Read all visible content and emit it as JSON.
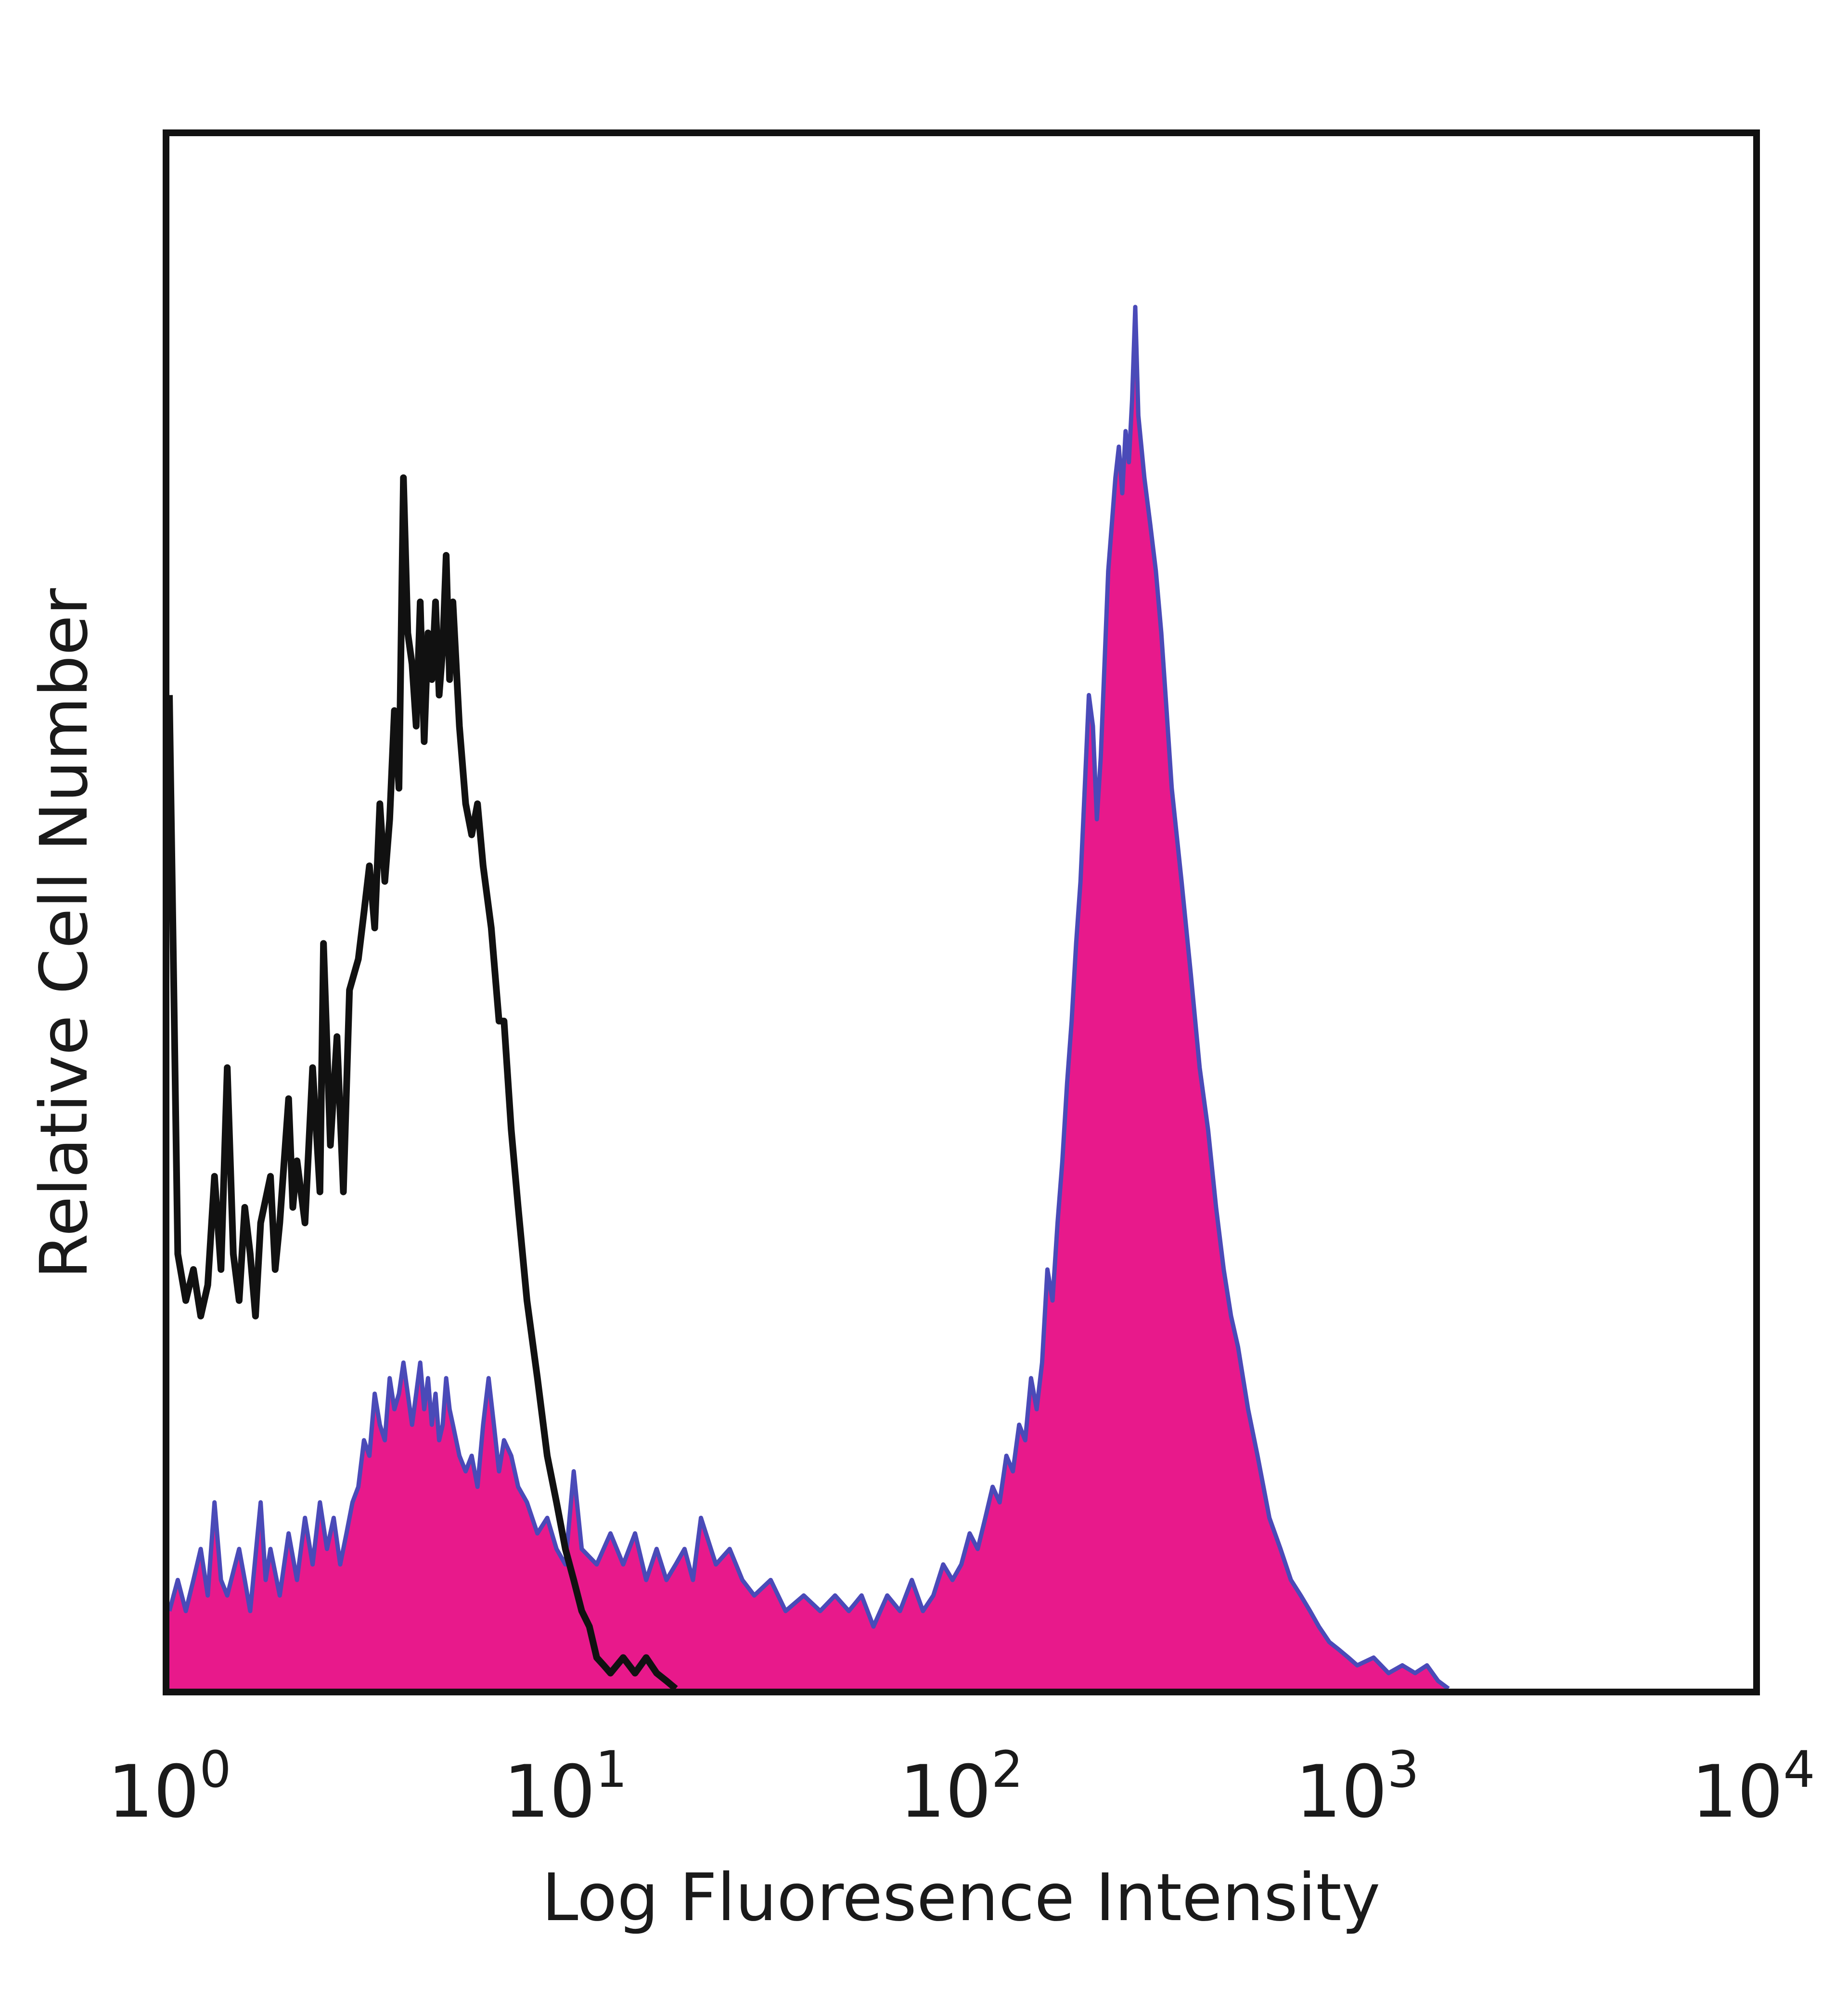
{
  "chart_data": {
    "type": "area",
    "title": "",
    "xlabel": "Log Fluoresence Intensity",
    "ylabel": "Relative Cell Number",
    "xscale": "log",
    "xlim": [
      1,
      10000
    ],
    "ylim": [
      0,
      100
    ],
    "grid": false,
    "legend": "none",
    "x_ticks": [
      {
        "base": "10",
        "exp": "0",
        "value": 1
      },
      {
        "base": "10",
        "exp": "1",
        "value": 10
      },
      {
        "base": "10",
        "exp": "2",
        "value": 100
      },
      {
        "base": "10",
        "exp": "3",
        "value": 1000
      },
      {
        "base": "10",
        "exp": "4",
        "value": 10000
      }
    ],
    "series": [
      {
        "style": "line",
        "color": "#111111",
        "points": [
          [
            1.0,
            64
          ],
          [
            1.05,
            28
          ],
          [
            1.1,
            25
          ],
          [
            1.15,
            27
          ],
          [
            1.2,
            24
          ],
          [
            1.25,
            26
          ],
          [
            1.3,
            33
          ],
          [
            1.35,
            27
          ],
          [
            1.4,
            40
          ],
          [
            1.45,
            28
          ],
          [
            1.5,
            25
          ],
          [
            1.55,
            31
          ],
          [
            1.6,
            28
          ],
          [
            1.65,
            24
          ],
          [
            1.7,
            30
          ],
          [
            1.8,
            33
          ],
          [
            1.85,
            27
          ],
          [
            1.9,
            30
          ],
          [
            2.0,
            38
          ],
          [
            2.05,
            31
          ],
          [
            2.1,
            34
          ],
          [
            2.2,
            30
          ],
          [
            2.3,
            40
          ],
          [
            2.4,
            32
          ],
          [
            2.45,
            48
          ],
          [
            2.55,
            35
          ],
          [
            2.65,
            42
          ],
          [
            2.75,
            32
          ],
          [
            2.85,
            45
          ],
          [
            3.0,
            47
          ],
          [
            3.1,
            50
          ],
          [
            3.2,
            53
          ],
          [
            3.3,
            49
          ],
          [
            3.4,
            57
          ],
          [
            3.5,
            52
          ],
          [
            3.6,
            56
          ],
          [
            3.7,
            63
          ],
          [
            3.8,
            58
          ],
          [
            3.9,
            78
          ],
          [
            4.0,
            68
          ],
          [
            4.1,
            66
          ],
          [
            4.2,
            62
          ],
          [
            4.3,
            70
          ],
          [
            4.4,
            61
          ],
          [
            4.5,
            68
          ],
          [
            4.6,
            65
          ],
          [
            4.7,
            70
          ],
          [
            4.8,
            64
          ],
          [
            4.9,
            67
          ],
          [
            5.0,
            73
          ],
          [
            5.1,
            65
          ],
          [
            5.2,
            70
          ],
          [
            5.4,
            62
          ],
          [
            5.6,
            57
          ],
          [
            5.8,
            55
          ],
          [
            6.0,
            57
          ],
          [
            6.2,
            53
          ],
          [
            6.5,
            49
          ],
          [
            6.8,
            43
          ],
          [
            7.0,
            43
          ],
          [
            7.3,
            36
          ],
          [
            7.6,
            31
          ],
          [
            8.0,
            25
          ],
          [
            8.5,
            20
          ],
          [
            9.0,
            15
          ],
          [
            9.5,
            12
          ],
          [
            10.0,
            9
          ],
          [
            10.5,
            7
          ],
          [
            11.0,
            5
          ],
          [
            11.5,
            4
          ],
          [
            12.0,
            2
          ],
          [
            12.5,
            1.5
          ],
          [
            13.0,
            1
          ],
          [
            14.0,
            2
          ],
          [
            15.0,
            1
          ],
          [
            16.0,
            2
          ],
          [
            17.0,
            1
          ],
          [
            18.0,
            0.5
          ],
          [
            19.0,
            0
          ]
        ]
      },
      {
        "style": "filled",
        "color": "#e8198b",
        "stroke": "#4a4ab8",
        "points": [
          [
            1.0,
            5
          ],
          [
            1.05,
            7
          ],
          [
            1.1,
            5
          ],
          [
            1.15,
            7
          ],
          [
            1.2,
            9
          ],
          [
            1.25,
            6
          ],
          [
            1.3,
            12
          ],
          [
            1.35,
            7
          ],
          [
            1.4,
            6
          ],
          [
            1.5,
            9
          ],
          [
            1.55,
            7
          ],
          [
            1.6,
            5
          ],
          [
            1.7,
            12
          ],
          [
            1.75,
            7
          ],
          [
            1.8,
            9
          ],
          [
            1.9,
            6
          ],
          [
            2.0,
            10
          ],
          [
            2.1,
            7
          ],
          [
            2.2,
            11
          ],
          [
            2.3,
            8
          ],
          [
            2.4,
            12
          ],
          [
            2.5,
            9
          ],
          [
            2.6,
            11
          ],
          [
            2.7,
            8
          ],
          [
            2.8,
            10
          ],
          [
            2.9,
            12
          ],
          [
            3.0,
            13
          ],
          [
            3.1,
            16
          ],
          [
            3.2,
            15
          ],
          [
            3.3,
            19
          ],
          [
            3.4,
            17
          ],
          [
            3.5,
            16
          ],
          [
            3.6,
            20
          ],
          [
            3.7,
            18
          ],
          [
            3.8,
            19
          ],
          [
            3.9,
            21
          ],
          [
            4.0,
            19
          ],
          [
            4.1,
            17
          ],
          [
            4.2,
            19
          ],
          [
            4.3,
            21
          ],
          [
            4.4,
            18
          ],
          [
            4.5,
            20
          ],
          [
            4.6,
            17
          ],
          [
            4.7,
            19
          ],
          [
            4.8,
            16
          ],
          [
            4.9,
            17
          ],
          [
            5.0,
            20
          ],
          [
            5.1,
            18
          ],
          [
            5.2,
            17
          ],
          [
            5.4,
            15
          ],
          [
            5.6,
            14
          ],
          [
            5.8,
            15
          ],
          [
            6.0,
            13
          ],
          [
            6.2,
            17
          ],
          [
            6.4,
            20
          ],
          [
            6.6,
            17
          ],
          [
            6.8,
            14
          ],
          [
            7.0,
            16
          ],
          [
            7.3,
            15
          ],
          [
            7.6,
            13
          ],
          [
            8.0,
            12
          ],
          [
            8.5,
            10
          ],
          [
            9.0,
            11
          ],
          [
            9.5,
            9
          ],
          [
            10.0,
            8
          ],
          [
            10.5,
            14
          ],
          [
            11.0,
            9
          ],
          [
            12.0,
            8
          ],
          [
            13.0,
            10
          ],
          [
            14.0,
            8
          ],
          [
            15.0,
            10
          ],
          [
            16.0,
            7
          ],
          [
            17.0,
            9
          ],
          [
            18.0,
            7
          ],
          [
            19.0,
            8
          ],
          [
            20.0,
            9
          ],
          [
            21.0,
            7
          ],
          [
            22.0,
            11
          ],
          [
            24.0,
            8
          ],
          [
            26.0,
            9
          ],
          [
            28.0,
            7
          ],
          [
            30.0,
            6
          ],
          [
            33.0,
            7
          ],
          [
            36.0,
            5
          ],
          [
            40.0,
            6
          ],
          [
            44.0,
            5
          ],
          [
            48.0,
            6
          ],
          [
            52.0,
            5
          ],
          [
            56.0,
            6
          ],
          [
            60.0,
            4
          ],
          [
            65.0,
            6
          ],
          [
            70.0,
            5
          ],
          [
            75.0,
            7
          ],
          [
            80.0,
            5
          ],
          [
            85.0,
            6
          ],
          [
            90.0,
            8
          ],
          [
            95.0,
            7
          ],
          [
            100.0,
            8
          ],
          [
            105.0,
            10
          ],
          [
            110.0,
            9
          ],
          [
            115.0,
            11
          ],
          [
            120.0,
            13
          ],
          [
            125.0,
            12
          ],
          [
            130.0,
            15
          ],
          [
            135.0,
            14
          ],
          [
            140.0,
            17
          ],
          [
            145.0,
            16
          ],
          [
            150.0,
            20
          ],
          [
            155.0,
            18
          ],
          [
            160.0,
            21
          ],
          [
            165.0,
            27
          ],
          [
            170.0,
            25
          ],
          [
            175.0,
            30
          ],
          [
            180.0,
            34
          ],
          [
            185.0,
            39
          ],
          [
            190.0,
            43
          ],
          [
            195.0,
            48
          ],
          [
            200.0,
            52
          ],
          [
            205.0,
            58
          ],
          [
            210.0,
            64
          ],
          [
            215.0,
            62
          ],
          [
            220.0,
            56
          ],
          [
            225.0,
            60
          ],
          [
            230.0,
            66
          ],
          [
            235.0,
            72
          ],
          [
            240.0,
            75
          ],
          [
            245.0,
            78
          ],
          [
            250.0,
            80
          ],
          [
            255.0,
            77
          ],
          [
            260.0,
            81
          ],
          [
            265.0,
            79
          ],
          [
            270.0,
            83
          ],
          [
            275.0,
            89
          ],
          [
            280.0,
            82
          ],
          [
            285.0,
            80
          ],
          [
            290.0,
            78
          ],
          [
            300.0,
            75
          ],
          [
            310.0,
            72
          ],
          [
            320.0,
            68
          ],
          [
            330.0,
            63
          ],
          [
            340.0,
            58
          ],
          [
            360.0,
            52
          ],
          [
            380.0,
            46
          ],
          [
            400.0,
            40
          ],
          [
            420.0,
            36
          ],
          [
            440.0,
            31
          ],
          [
            460.0,
            27
          ],
          [
            480.0,
            24
          ],
          [
            500.0,
            22
          ],
          [
            530.0,
            18
          ],
          [
            560.0,
            15
          ],
          [
            600.0,
            11
          ],
          [
            640.0,
            9
          ],
          [
            680.0,
            7
          ],
          [
            720.0,
            6
          ],
          [
            760.0,
            5
          ],
          [
            800.0,
            4
          ],
          [
            850.0,
            3
          ],
          [
            900.0,
            2.5
          ],
          [
            950.0,
            2
          ],
          [
            1000.0,
            1.5
          ],
          [
            1100.0,
            2
          ],
          [
            1200.0,
            1
          ],
          [
            1300.0,
            1.5
          ],
          [
            1400.0,
            1
          ],
          [
            1500.0,
            1.5
          ],
          [
            1600.0,
            0.5
          ],
          [
            1700.0,
            0
          ]
        ]
      }
    ]
  }
}
